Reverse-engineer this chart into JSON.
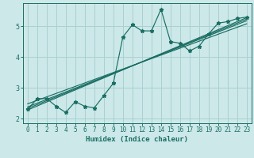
{
  "xlabel": "Humidex (Indice chaleur)",
  "ylabel": "",
  "background_color": "#cce8e8",
  "grid_color": "#aad0d0",
  "line_color": "#1a6e64",
  "xlim": [
    -0.5,
    23.5
  ],
  "ylim": [
    1.85,
    5.75
  ],
  "xticks": [
    0,
    1,
    2,
    3,
    4,
    5,
    6,
    7,
    8,
    9,
    10,
    11,
    12,
    13,
    14,
    15,
    16,
    17,
    18,
    19,
    20,
    21,
    22,
    23
  ],
  "yticks": [
    2,
    3,
    4,
    5
  ],
  "scatter_x": [
    0,
    1,
    2,
    3,
    4,
    5,
    6,
    7,
    8,
    9,
    10,
    11,
    12,
    13,
    14,
    15,
    16,
    17,
    18,
    19,
    20,
    21,
    22,
    23
  ],
  "scatter_y": [
    2.3,
    2.65,
    2.65,
    2.4,
    2.2,
    2.55,
    2.4,
    2.35,
    2.75,
    3.15,
    4.65,
    5.05,
    4.85,
    4.85,
    5.55,
    4.5,
    4.45,
    4.2,
    4.35,
    4.75,
    5.1,
    5.15,
    5.25,
    5.3
  ],
  "reg_lines": [
    {
      "x": [
        0,
        23
      ],
      "y": [
        2.28,
        5.28
      ]
    },
    {
      "x": [
        0,
        23
      ],
      "y": [
        2.38,
        5.18
      ]
    },
    {
      "x": [
        0,
        23
      ],
      "y": [
        2.48,
        5.08
      ]
    },
    {
      "x": [
        0,
        23
      ],
      "y": [
        2.33,
        5.23
      ]
    }
  ],
  "tick_fontsize": 5.5,
  "xlabel_fontsize": 6.5
}
